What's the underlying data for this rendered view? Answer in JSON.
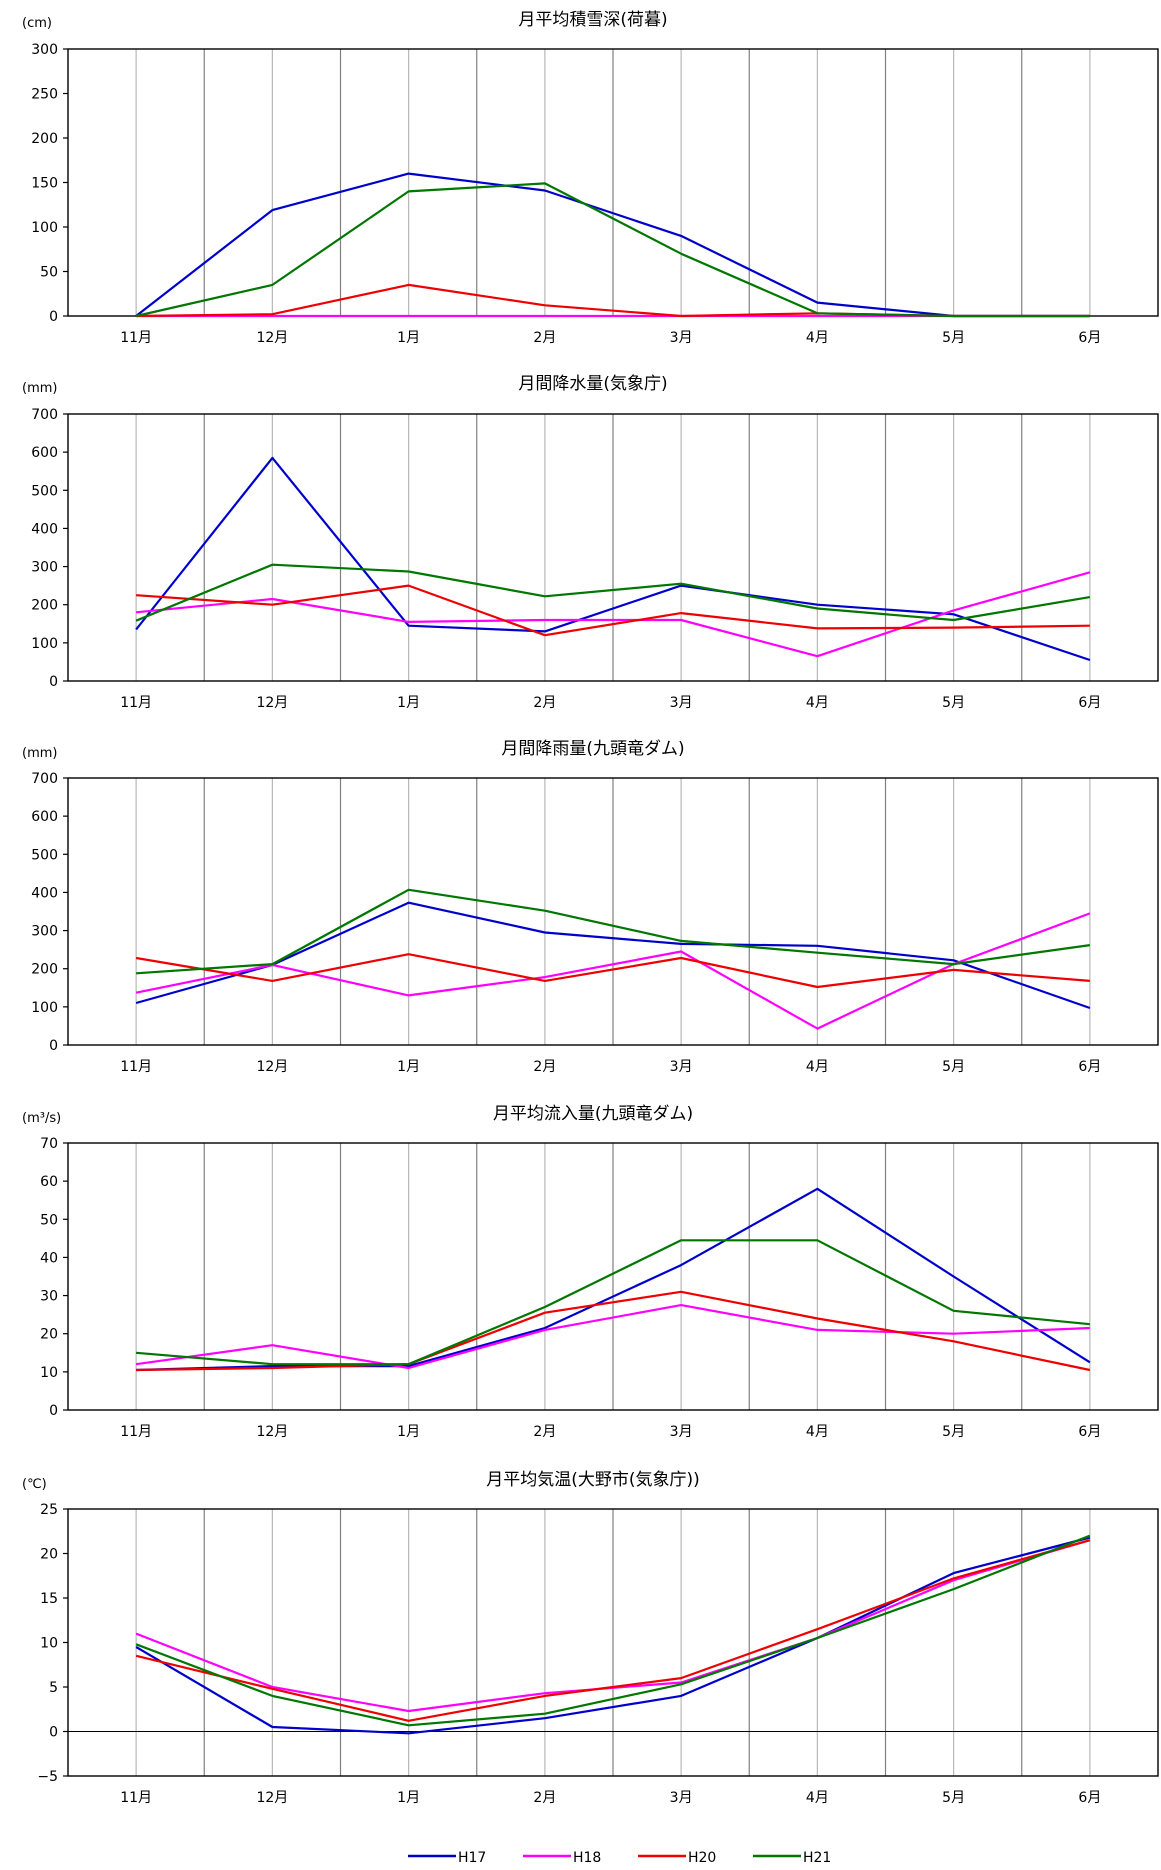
{
  "legend": [
    {
      "name": "H17",
      "color": "#0000cc"
    },
    {
      "name": "H18",
      "color": "#ff00ff"
    },
    {
      "name": "H20",
      "color": "#ee0000"
    },
    {
      "name": "H21",
      "color": "#007700"
    }
  ],
  "chart_data": [
    {
      "type": "line",
      "title": "月平均積雪深(荷暮)",
      "ylabel": "(cm)",
      "categories": [
        "11月",
        "12月",
        "1月",
        "2月",
        "3月",
        "4月",
        "5月",
        "6月"
      ],
      "ylim": [
        0,
        300
      ],
      "yticks": [
        0,
        50,
        100,
        150,
        200,
        250,
        300
      ],
      "grid": true,
      "series": [
        {
          "name": "H17",
          "values": [
            0,
            119,
            160,
            141,
            90,
            15,
            0,
            0
          ]
        },
        {
          "name": "H18",
          "values": [
            0,
            0,
            0,
            0,
            0,
            0,
            0,
            0
          ]
        },
        {
          "name": "H20",
          "values": [
            0,
            2,
            35,
            12,
            0,
            3,
            0,
            0
          ]
        },
        {
          "name": "H21",
          "values": [
            0,
            35,
            140,
            149,
            70,
            3,
            0,
            0
          ]
        }
      ]
    },
    {
      "type": "line",
      "title": "月間降水量(気象庁)",
      "ylabel": "(mm)",
      "categories": [
        "11月",
        "12月",
        "1月",
        "2月",
        "3月",
        "4月",
        "5月",
        "6月"
      ],
      "ylim": [
        0,
        700
      ],
      "yticks": [
        0,
        100,
        200,
        300,
        400,
        500,
        600,
        700
      ],
      "grid": true,
      "series": [
        {
          "name": "H17",
          "values": [
            135,
            585,
            145,
            130,
            250,
            200,
            175,
            55
          ]
        },
        {
          "name": "H18",
          "values": [
            180,
            215,
            155,
            160,
            160,
            65,
            185,
            285
          ]
        },
        {
          "name": "H20",
          "values": [
            225,
            200,
            250,
            120,
            178,
            138,
            140,
            145
          ]
        },
        {
          "name": "H21",
          "values": [
            158,
            305,
            287,
            222,
            255,
            190,
            160,
            220
          ]
        }
      ]
    },
    {
      "type": "line",
      "title": "月間降雨量(九頭竜ダム)",
      "ylabel": "(mm)",
      "categories": [
        "11月",
        "12月",
        "1月",
        "2月",
        "3月",
        "4月",
        "5月",
        "6月"
      ],
      "ylim": [
        0,
        700
      ],
      "yticks": [
        0,
        100,
        200,
        300,
        400,
        500,
        600,
        700
      ],
      "grid": true,
      "series": [
        {
          "name": "H17",
          "values": [
            110,
            210,
            373,
            295,
            265,
            260,
            222,
            97
          ]
        },
        {
          "name": "H18",
          "values": [
            137,
            210,
            130,
            178,
            245,
            43,
            212,
            345
          ]
        },
        {
          "name": "H20",
          "values": [
            228,
            168,
            238,
            168,
            228,
            152,
            197,
            168
          ]
        },
        {
          "name": "H21",
          "values": [
            188,
            212,
            407,
            352,
            273,
            242,
            212,
            262
          ]
        }
      ]
    },
    {
      "type": "line",
      "title": "月平均流入量(九頭竜ダム)",
      "ylabel": "(m³/s)",
      "categories": [
        "11月",
        "12月",
        "1月",
        "2月",
        "3月",
        "4月",
        "5月",
        "6月"
      ],
      "ylim": [
        0,
        70
      ],
      "yticks": [
        0,
        10,
        20,
        30,
        40,
        50,
        60,
        70
      ],
      "grid": true,
      "series": [
        {
          "name": "H17",
          "values": [
            10.5,
            11.5,
            11.5,
            21.5,
            38,
            58,
            35,
            12.5
          ]
        },
        {
          "name": "H18",
          "values": [
            12,
            17,
            11,
            21,
            27.5,
            21,
            20,
            21.5
          ]
        },
        {
          "name": "H20",
          "values": [
            10.5,
            11,
            12,
            25.5,
            31,
            24,
            18,
            10.5
          ]
        },
        {
          "name": "H21",
          "values": [
            15,
            12,
            12,
            27,
            44.5,
            44.5,
            26,
            22.5
          ]
        }
      ]
    },
    {
      "type": "line",
      "title": "月平均気温(大野市(気象庁))",
      "ylabel": "(℃)",
      "categories": [
        "11月",
        "12月",
        "1月",
        "2月",
        "3月",
        "4月",
        "5月",
        "6月"
      ],
      "ylim": [
        -5,
        25
      ],
      "yticks": [
        -5,
        0,
        5,
        10,
        15,
        20,
        25
      ],
      "grid": true,
      "series": [
        {
          "name": "H17",
          "values": [
            9.5,
            0.5,
            -0.2,
            1.5,
            4,
            10.5,
            17.8,
            21.8
          ]
        },
        {
          "name": "H18",
          "values": [
            11,
            5,
            2.3,
            4.3,
            5.5,
            10.5,
            17,
            21.5
          ]
        },
        {
          "name": "H20",
          "values": [
            8.5,
            4.8,
            1.2,
            4,
            6,
            11.5,
            17.2,
            21.5
          ]
        },
        {
          "name": "H21",
          "values": [
            9.8,
            4,
            0.7,
            2,
            5.3,
            10.5,
            16,
            22
          ]
        }
      ]
    }
  ]
}
